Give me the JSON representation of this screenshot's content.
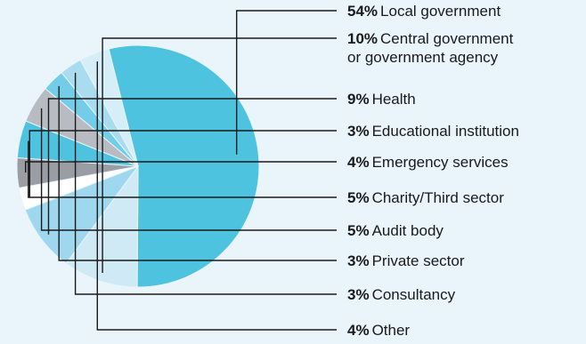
{
  "chart_data": {
    "type": "pie",
    "title": "",
    "slices": [
      {
        "percent": 54,
        "percent_label": "54%",
        "label_lines": [
          "Local government"
        ],
        "color": "#4ec3e0"
      },
      {
        "percent": 10,
        "percent_label": "10%",
        "label_lines": [
          "Central government",
          "or government agency"
        ],
        "color": "#cfeaf5"
      },
      {
        "percent": 9,
        "percent_label": "9%",
        "label_lines": [
          "Health"
        ],
        "color": "#9fd8ee"
      },
      {
        "percent": 3,
        "percent_label": "3%",
        "label_lines": [
          "Educational institution"
        ],
        "color": "#ffffff"
      },
      {
        "percent": 4,
        "percent_label": "4%",
        "label_lines": [
          "Emergency services"
        ],
        "color": "#9a9ea4"
      },
      {
        "percent": 5,
        "percent_label": "5%",
        "label_lines": [
          "Charity/Third sector"
        ],
        "color": "#4ec3e0"
      },
      {
        "percent": 5,
        "percent_label": "5%",
        "label_lines": [
          "Audit body"
        ],
        "color": "#b8bcc2"
      },
      {
        "percent": 3,
        "percent_label": "3%",
        "label_lines": [
          "Private sector"
        ],
        "color": "#74cde8"
      },
      {
        "percent": 3,
        "percent_label": "3%",
        "label_lines": [
          "Consultancy"
        ],
        "color": "#aadcef"
      },
      {
        "percent": 4,
        "percent_label": "4%",
        "label_lines": [
          "Other"
        ],
        "color": "#d6eef7"
      }
    ]
  }
}
